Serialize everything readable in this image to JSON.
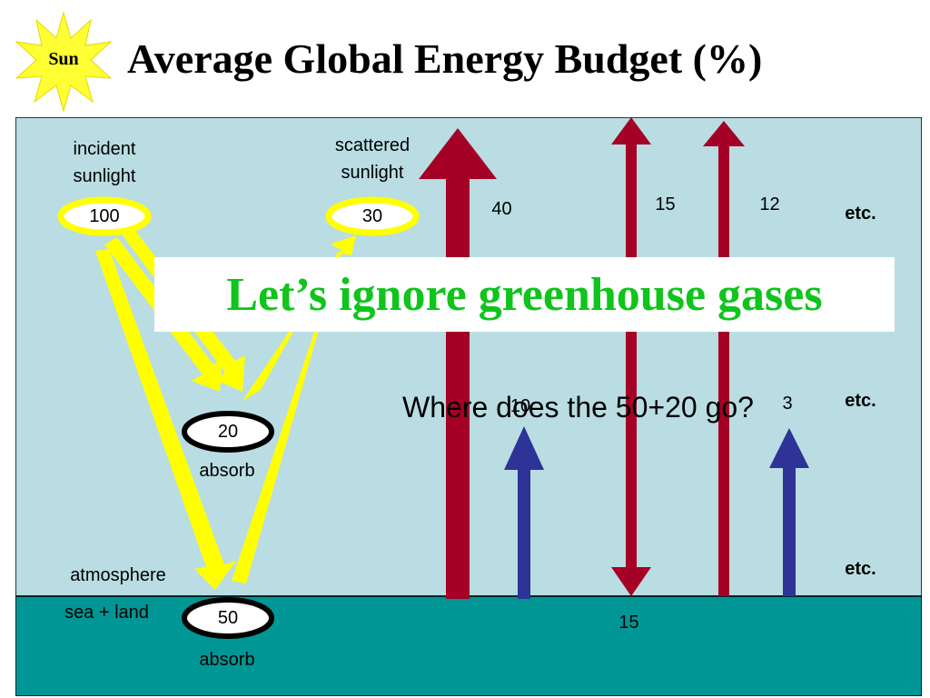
{
  "title": "Average Global Energy Budget (%)",
  "sun_label": "Sun",
  "labels": {
    "incident_sunlight_line1": "incident",
    "incident_sunlight_line2": "sunlight",
    "scattered_sunlight_line1": "scattered",
    "scattered_sunlight_line2": "sunlight",
    "atmosphere": "atmosphere",
    "sea_land": "sea + land",
    "absorb_atmosphere": "absorb",
    "absorb_surface": "absorb"
  },
  "nodes": {
    "incident": "100",
    "scattered": "30",
    "atmosphere_absorbed": "20",
    "surface_absorbed": "50"
  },
  "flow_values": {
    "upward_large": "40",
    "double_arrow_top": "15",
    "double_arrow_bottom": "15",
    "upward_right": "12",
    "blue_left": "10",
    "blue_right": "3"
  },
  "etc_labels": [
    "etc.",
    "etc.",
    "etc."
  ],
  "banner": "Let’s ignore greenhouse gases",
  "question": "Where does the 50+20 go?",
  "colors": {
    "sky": "#b9dde3",
    "sea_land": "#009695",
    "sunlight": "#ffff00",
    "longwave": "#a50026",
    "sensible_heat": "#2e3397",
    "banner_text": "#0fc41b",
    "sun": "#ffff33"
  }
}
